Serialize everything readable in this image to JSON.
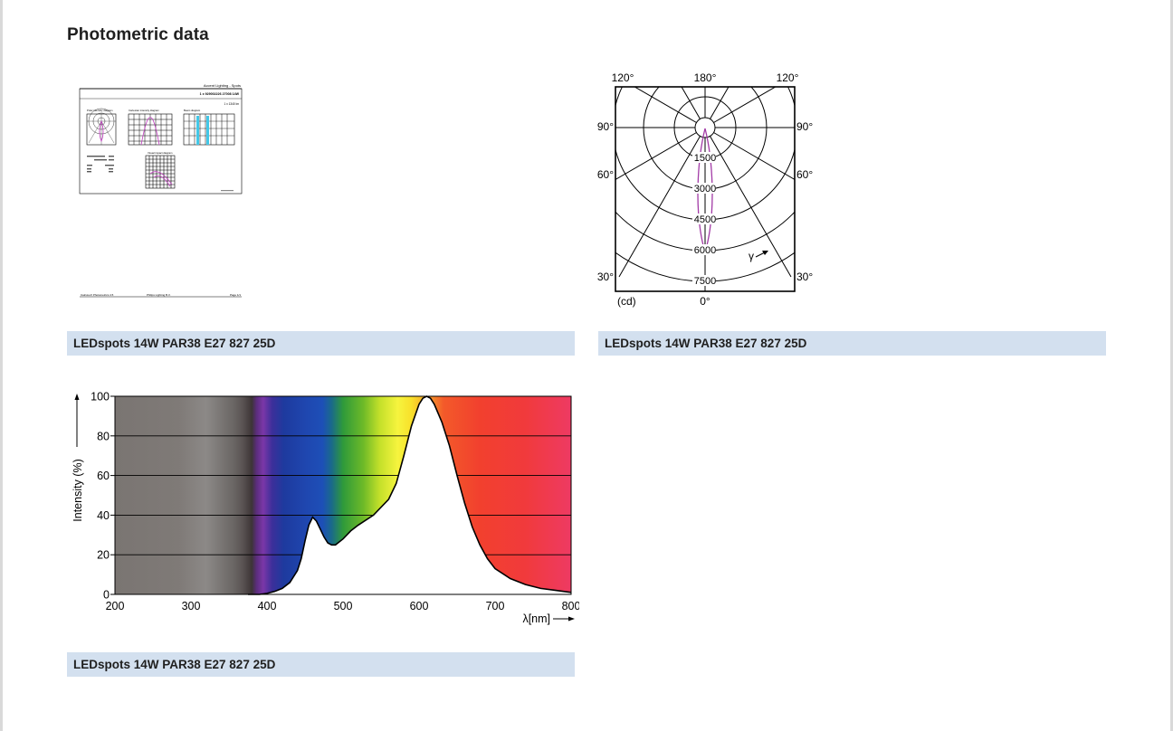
{
  "page": {
    "title": "Photometric data"
  },
  "thumbnail": {
    "header_title": "Accent Lighting - Spots",
    "header_code": "1 x 929002226 27008 14W",
    "sub_code": "1 x 1340 lm",
    "panel_labels": [
      "Polar intensity diagram",
      "Cartesian intensity diagram",
      "Beam diagram",
      "Visual impact diagram"
    ],
    "footer_left": "CalcuLuX Photometrics 4.5",
    "footer_mid": "Philips Lighting B.V.",
    "footer_right": "Page 1/1",
    "caption": "LEDspots 14W PAR38 E27 827 25D"
  },
  "polar": {
    "angle_labels": {
      "top_left": "120°",
      "top_center": "180°",
      "top_right": "120°",
      "left_90": "90°",
      "right_90": "90°",
      "left_60": "60°",
      "right_60": "60°",
      "left_30": "30°",
      "right_30": "30°",
      "bottom_center": "0°"
    },
    "radial_values": [
      "1500",
      "3000",
      "4500",
      "6000",
      "7500"
    ],
    "unit": "(cd)",
    "gamma_label": "γ",
    "curve_color": "#a23aa6",
    "caption": "LEDspots 14W PAR38 E27 827 25D"
  },
  "chart_data": {
    "type": "area",
    "ylabel": "Intensity (%)",
    "xlabel": "λ[nm]",
    "xlim": [
      200,
      800
    ],
    "ylim": [
      0,
      100
    ],
    "x_ticks": [
      "200",
      "300",
      "400",
      "500",
      "600",
      "700",
      "800"
    ],
    "y_ticks": [
      "0",
      "20",
      "40",
      "60",
      "80",
      "100"
    ],
    "grid": true,
    "series": [
      {
        "x": [
          375,
          390,
          400,
          410,
          420,
          430,
          440,
          445,
          450,
          455,
          460,
          465,
          470,
          475,
          480,
          485,
          490,
          500,
          510,
          520,
          540,
          560,
          570,
          580,
          590,
          600,
          605,
          610,
          615,
          620,
          630,
          640,
          650,
          660,
          670,
          680,
          690,
          700,
          720,
          740,
          760,
          780,
          790,
          800
        ],
        "y": [
          0,
          0,
          0.5,
          1.5,
          3,
          6,
          12,
          18,
          27,
          35,
          39,
          37,
          33,
          29,
          26,
          25,
          25,
          28,
          32,
          35,
          40,
          48,
          56,
          70,
          85,
          96,
          99,
          100,
          99,
          96,
          87,
          75,
          60,
          46,
          34,
          25,
          18,
          13,
          8,
          5,
          3,
          2,
          1.5,
          1
        ]
      }
    ]
  },
  "spectrum_caption": "LEDspots 14W PAR38 E27 827 25D"
}
